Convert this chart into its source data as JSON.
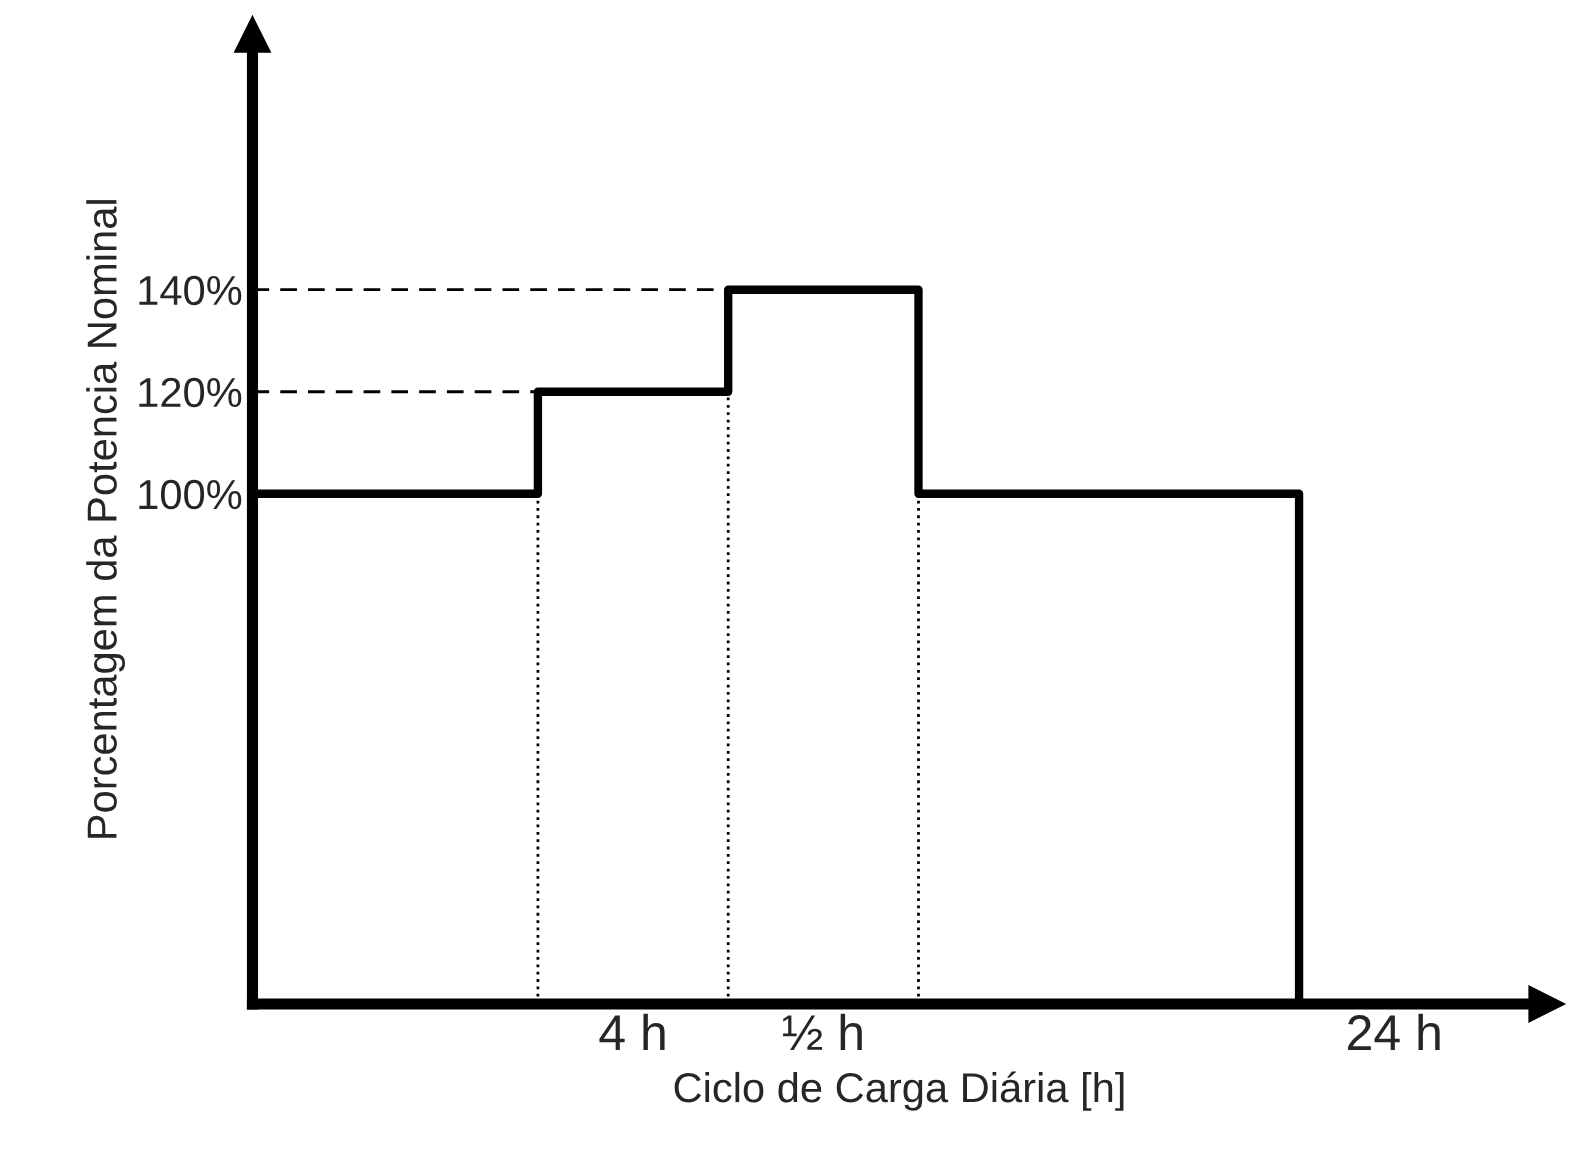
{
  "chart_data": {
    "type": "step",
    "xlabel": "Ciclo de Carga Diária [h]",
    "ylabel": "Porcentagem da Potencia Nominal",
    "categories": [
      null,
      null,
      "4 h",
      "½ h",
      null,
      null,
      "24 h"
    ],
    "series": [
      {
        "color": "#000000",
        "values": [
          100,
          100,
          120,
          140,
          100,
          100,
          0
        ]
      }
    ],
    "ylim": [
      0,
      190
    ],
    "yticks": [
      {
        "value": 100,
        "label": "100%"
      },
      {
        "value": 120,
        "label": "120%"
      },
      {
        "value": 140,
        "label": "140%"
      }
    ],
    "ref_lines": [
      {
        "axis": "y",
        "value": 120,
        "line_style": "dashed",
        "color": "#000000"
      },
      {
        "axis": "y",
        "value": 140,
        "line_style": "dashed",
        "color": "#000000"
      }
    ],
    "grid": false,
    "legend": false
  }
}
